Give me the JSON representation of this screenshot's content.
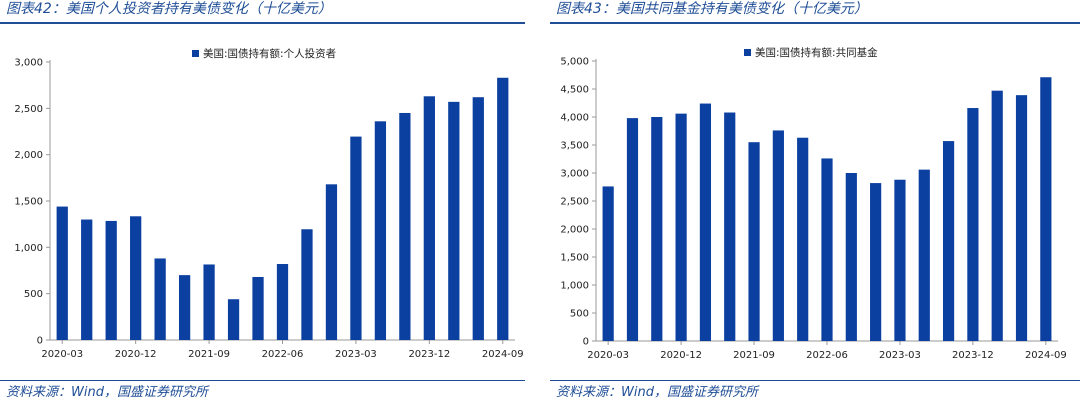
{
  "source_note": "资料来源：Wind，国盛证券研究所",
  "colors": {
    "bar": "#0b3fa0",
    "frame": "#1f4e96",
    "axis": "#999999"
  },
  "chart_data": [
    {
      "type": "bar",
      "figure_title": "图表42：美国个人投资者持有美债变化（十亿美元）",
      "legend": "美国:国债持有额:个人投资者",
      "categories": [
        "2020-03",
        "2020-06",
        "2020-09",
        "2020-12",
        "2021-03",
        "2021-06",
        "2021-09",
        "2021-12",
        "2022-03",
        "2022-06",
        "2022-09",
        "2022-12",
        "2023-03",
        "2023-06",
        "2023-09",
        "2023-12",
        "2024-03",
        "2024-06",
        "2024-09"
      ],
      "x_tick_labels": [
        "2020-03",
        "2020-12",
        "2021-09",
        "2022-06",
        "2023-03",
        "2023-12",
        "2024-09"
      ],
      "values": [
        1440,
        1300,
        1285,
        1335,
        880,
        700,
        815,
        440,
        680,
        820,
        1195,
        1680,
        2195,
        2360,
        2450,
        2630,
        2570,
        2620,
        2830
      ],
      "ylim": [
        0,
        3000
      ],
      "y_ticks": [
        0,
        500,
        1000,
        1500,
        2000,
        2500,
        3000
      ],
      "y_tick_labels": [
        "0",
        "500",
        "1,000",
        "1,500",
        "2,000",
        "2,500",
        "3,000"
      ],
      "legend_position": "top-right"
    },
    {
      "type": "bar",
      "figure_title": "图表43：美国共同基金持有美债变化（十亿美元）",
      "legend": "美国:国债持有额:共同基金",
      "categories": [
        "2020-03",
        "2020-06",
        "2020-09",
        "2020-12",
        "2021-03",
        "2021-06",
        "2021-09",
        "2021-12",
        "2022-03",
        "2022-06",
        "2022-09",
        "2022-12",
        "2023-03",
        "2023-06",
        "2023-09",
        "2023-12",
        "2024-03",
        "2024-06",
        "2024-09"
      ],
      "x_tick_labels": [
        "2020-03",
        "2020-12",
        "2021-09",
        "2022-06",
        "2023-03",
        "2023-12",
        "2024-09"
      ],
      "values": [
        2760,
        3980,
        4000,
        4060,
        4240,
        4080,
        3550,
        3760,
        3630,
        3260,
        3000,
        2820,
        2880,
        3060,
        3570,
        4160,
        4470,
        4390,
        4710
      ],
      "ylim": [
        0,
        5000
      ],
      "y_ticks": [
        0,
        500,
        1000,
        1500,
        2000,
        2500,
        3000,
        3500,
        4000,
        4500,
        5000
      ],
      "y_tick_labels": [
        "0",
        "500",
        "1,000",
        "1,500",
        "2,000",
        "2,500",
        "3,000",
        "3,500",
        "4,000",
        "4,500",
        "5,000"
      ],
      "legend_position": "top-right"
    }
  ]
}
